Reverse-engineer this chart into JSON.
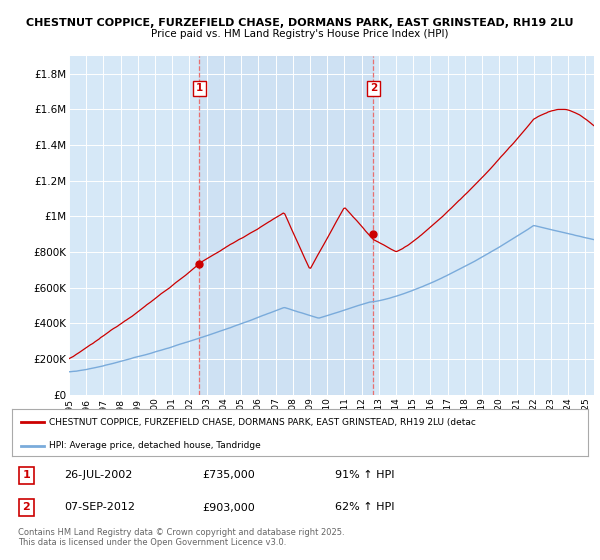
{
  "title1": "CHESTNUT COPPICE, FURZEFIELD CHASE, DORMANS PARK, EAST GRINSTEAD, RH19 2LU",
  "title2": "Price paid vs. HM Land Registry's House Price Index (HPI)",
  "background_color": "#d6e8f7",
  "ylim": [
    0,
    1900000
  ],
  "yticks": [
    0,
    200000,
    400000,
    600000,
    800000,
    1000000,
    1200000,
    1400000,
    1600000,
    1800000
  ],
  "ytick_labels": [
    "£0",
    "£200K",
    "£400K",
    "£600K",
    "£800K",
    "£1M",
    "£1.2M",
    "£1.4M",
    "£1.6M",
    "£1.8M"
  ],
  "xmin": 1995.0,
  "xmax": 2025.5,
  "marker1_x": 2002.57,
  "marker1_y": 735000,
  "marker1_label": "1",
  "marker2_x": 2012.68,
  "marker2_y": 903000,
  "marker2_label": "2",
  "red_line_color": "#cc0000",
  "blue_line_color": "#7aabdb",
  "marker_box_color": "#cc0000",
  "vline_color": "#e87070",
  "legend_label_red": "CHESTNUT COPPICE, FURZEFIELD CHASE, DORMANS PARK, EAST GRINSTEAD, RH19 2LU (detac",
  "legend_label_blue": "HPI: Average price, detached house, Tandridge",
  "annotation1_date": "26-JUL-2002",
  "annotation1_price": "£735,000",
  "annotation1_hpi": "91% ↑ HPI",
  "annotation2_date": "07-SEP-2012",
  "annotation2_price": "£903,000",
  "annotation2_hpi": "62% ↑ HPI",
  "footer": "Contains HM Land Registry data © Crown copyright and database right 2025.\nThis data is licensed under the Open Government Licence v3.0."
}
